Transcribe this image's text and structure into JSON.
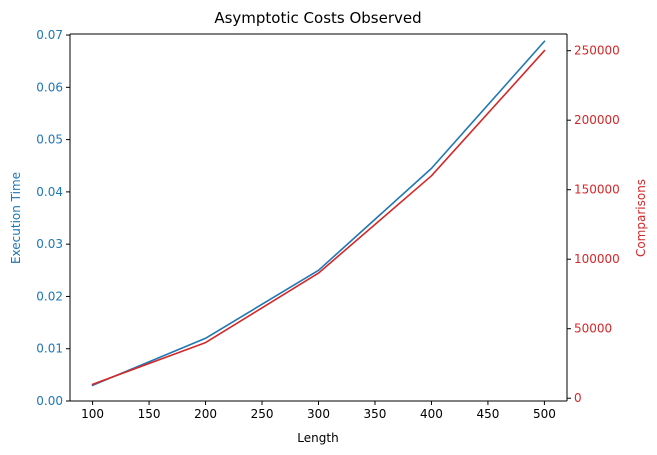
{
  "chart_data": {
    "type": "line",
    "title": "Asymptotic Costs Observed",
    "xlabel": "Length",
    "ylabel_left": "Execution Time",
    "ylabel_right": "Comparisons",
    "x": [
      100,
      200,
      300,
      400,
      500
    ],
    "xlim": [
      80,
      520
    ],
    "xticks": [
      100,
      150,
      200,
      250,
      300,
      350,
      400,
      450,
      500
    ],
    "ylim_left": [
      0,
      0.0702
    ],
    "yticks_left": [
      "0.00",
      "0.01",
      "0.02",
      "0.03",
      "0.04",
      "0.05",
      "0.06",
      "0.07"
    ],
    "yticks_left_values": [
      0,
      0.01,
      0.02,
      0.03,
      0.04,
      0.05,
      0.06,
      0.07
    ],
    "ylim_right": [
      -2000,
      262000
    ],
    "yticks_right": [
      0,
      50000,
      100000,
      150000,
      200000,
      250000
    ],
    "grid": false,
    "series": [
      {
        "axis": "left",
        "color": "#1f77b4",
        "values": [
          0.003,
          0.012,
          0.025,
          0.0445,
          0.0688
        ]
      },
      {
        "axis": "right",
        "color": "#d62728",
        "values": [
          10000,
          40000,
          90000,
          160000,
          250000
        ]
      }
    ],
    "colors": {
      "left_axis": "#1f77b4",
      "right_axis": "#d62728",
      "axis": "#000000"
    }
  }
}
